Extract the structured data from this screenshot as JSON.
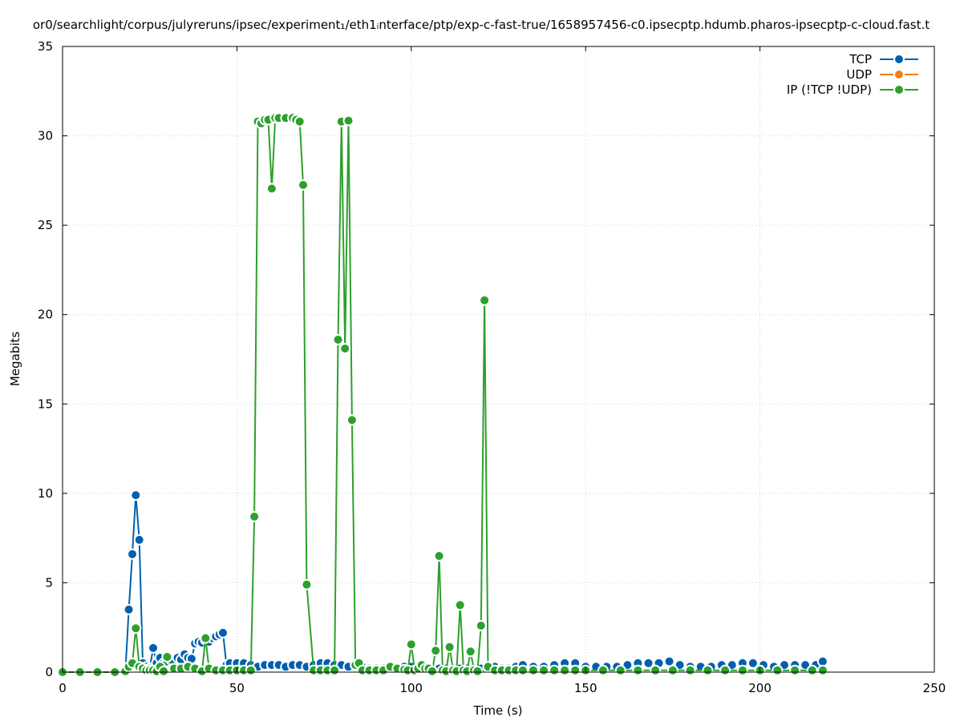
{
  "chart_data": {
    "type": "line",
    "title": "or0/searchlight/corpus/julyreruns/ipsec/experiment₁/eth1ᵢnterface/ptp/exp-c-fast-true/1658957456-c0.ipsecptp.hdumb.pharos-ipsecptp-c-cloud.fast.t",
    "xlabel": "Time (s)",
    "ylabel": "Megabits",
    "xlim": [
      0,
      250
    ],
    "ylim": [
      0,
      35
    ],
    "x_ticks": [
      0,
      50,
      100,
      150,
      200,
      250
    ],
    "y_ticks": [
      0,
      5,
      10,
      15,
      20,
      25,
      30,
      35
    ],
    "grid": true,
    "legend_position": "top-right",
    "series": [
      {
        "name": "TCP",
        "color": "#0060ad",
        "points": [
          [
            0,
            0
          ],
          [
            5,
            0
          ],
          [
            10,
            0
          ],
          [
            15,
            0
          ],
          [
            18,
            0
          ],
          [
            19,
            3.5
          ],
          [
            20,
            6.6
          ],
          [
            21,
            9.9
          ],
          [
            22,
            7.4
          ],
          [
            23,
            0.5
          ],
          [
            24,
            0.3
          ],
          [
            25,
            0.2
          ],
          [
            26,
            1.35
          ],
          [
            27,
            0.5
          ],
          [
            28,
            0.8
          ],
          [
            29,
            0.5
          ],
          [
            30,
            0.6
          ],
          [
            31,
            0.7
          ],
          [
            32,
            0.7
          ],
          [
            33,
            0.8
          ],
          [
            34,
            0.7
          ],
          [
            35,
            1.0
          ],
          [
            36,
            0.8
          ],
          [
            37,
            0.75
          ],
          [
            38,
            1.6
          ],
          [
            39,
            1.7
          ],
          [
            40,
            1.65
          ],
          [
            41,
            1.8
          ],
          [
            42,
            1.7
          ],
          [
            43,
            1.9
          ],
          [
            44,
            2.0
          ],
          [
            45,
            2.1
          ],
          [
            46,
            2.2
          ],
          [
            47,
            0.4
          ],
          [
            48,
            0.5
          ],
          [
            50,
            0.5
          ],
          [
            52,
            0.5
          ],
          [
            54,
            0.4
          ],
          [
            56,
            0.3
          ],
          [
            58,
            0.4
          ],
          [
            60,
            0.4
          ],
          [
            62,
            0.4
          ],
          [
            64,
            0.3
          ],
          [
            66,
            0.4
          ],
          [
            68,
            0.4
          ],
          [
            70,
            0.3
          ],
          [
            72,
            0.4
          ],
          [
            74,
            0.5
          ],
          [
            76,
            0.5
          ],
          [
            78,
            0.4
          ],
          [
            80,
            0.4
          ],
          [
            82,
            0.3
          ],
          [
            84,
            0.4
          ],
          [
            86,
            0.3
          ],
          [
            88,
            0.2
          ],
          [
            90,
            0.2
          ],
          [
            92,
            0.2
          ],
          [
            94,
            0.2
          ],
          [
            96,
            0.2
          ],
          [
            98,
            0.3
          ],
          [
            100,
            0.3
          ],
          [
            102,
            0.2
          ],
          [
            104,
            0.2
          ],
          [
            106,
            0.2
          ],
          [
            108,
            0.2
          ],
          [
            110,
            0.2
          ],
          [
            112,
            0.2
          ],
          [
            114,
            0.2
          ],
          [
            116,
            0.2
          ],
          [
            118,
            0.2
          ],
          [
            120,
            0.2
          ],
          [
            122,
            0.3
          ],
          [
            124,
            0.3
          ],
          [
            126,
            0.2
          ],
          [
            128,
            0.2
          ],
          [
            130,
            0.3
          ],
          [
            132,
            0.4
          ],
          [
            135,
            0.3
          ],
          [
            138,
            0.3
          ],
          [
            141,
            0.4
          ],
          [
            144,
            0.5
          ],
          [
            147,
            0.5
          ],
          [
            150,
            0.3
          ],
          [
            153,
            0.3
          ],
          [
            156,
            0.3
          ],
          [
            159,
            0.3
          ],
          [
            162,
            0.4
          ],
          [
            165,
            0.5
          ],
          [
            168,
            0.5
          ],
          [
            171,
            0.5
          ],
          [
            174,
            0.6
          ],
          [
            177,
            0.4
          ],
          [
            180,
            0.3
          ],
          [
            183,
            0.3
          ],
          [
            186,
            0.3
          ],
          [
            189,
            0.4
          ],
          [
            192,
            0.4
          ],
          [
            195,
            0.5
          ],
          [
            198,
            0.5
          ],
          [
            201,
            0.4
          ],
          [
            204,
            0.3
          ],
          [
            207,
            0.4
          ],
          [
            210,
            0.4
          ],
          [
            213,
            0.4
          ],
          [
            216,
            0.4
          ],
          [
            218,
            0.6
          ]
        ]
      },
      {
        "name": "UDP",
        "color": "#f07f16",
        "points": []
      },
      {
        "name": "IP (!TCP  !UDP)",
        "color": "#2ca02c",
        "points": [
          [
            0,
            0
          ],
          [
            5,
            0
          ],
          [
            10,
            0
          ],
          [
            15,
            0
          ],
          [
            18,
            0.05
          ],
          [
            19,
            0.3
          ],
          [
            20,
            0.5
          ],
          [
            21,
            2.45
          ],
          [
            22,
            0.3
          ],
          [
            23,
            0.2
          ],
          [
            24,
            0.1
          ],
          [
            25,
            0.1
          ],
          [
            26,
            0.1
          ],
          [
            27,
            0.05
          ],
          [
            28,
            0.3
          ],
          [
            29,
            0.05
          ],
          [
            30,
            0.85
          ],
          [
            32,
            0.2
          ],
          [
            34,
            0.2
          ],
          [
            36,
            0.3
          ],
          [
            38,
            0.2
          ],
          [
            40,
            0.05
          ],
          [
            41,
            1.9
          ],
          [
            42,
            0.2
          ],
          [
            44,
            0.1
          ],
          [
            46,
            0.1
          ],
          [
            48,
            0.1
          ],
          [
            50,
            0.1
          ],
          [
            52,
            0.1
          ],
          [
            54,
            0.1
          ],
          [
            55,
            8.7
          ],
          [
            56,
            30.8
          ],
          [
            57,
            30.7
          ],
          [
            58,
            30.9
          ],
          [
            59,
            30.9
          ],
          [
            60,
            27.05
          ],
          [
            61,
            31.0
          ],
          [
            62,
            31.0
          ],
          [
            64,
            31.0
          ],
          [
            66,
            31.0
          ],
          [
            67,
            30.9
          ],
          [
            68,
            30.8
          ],
          [
            69,
            27.25
          ],
          [
            70,
            4.9
          ],
          [
            72,
            0.1
          ],
          [
            74,
            0.1
          ],
          [
            76,
            0.1
          ],
          [
            78,
            0.1
          ],
          [
            79,
            18.6
          ],
          [
            80,
            30.8
          ],
          [
            81,
            18.1
          ],
          [
            82,
            30.85
          ],
          [
            83,
            14.1
          ],
          [
            84,
            0.4
          ],
          [
            85,
            0.5
          ],
          [
            86,
            0.1
          ],
          [
            88,
            0.1
          ],
          [
            90,
            0.1
          ],
          [
            92,
            0.1
          ],
          [
            94,
            0.3
          ],
          [
            96,
            0.2
          ],
          [
            98,
            0.15
          ],
          [
            99,
            0.1
          ],
          [
            100,
            1.55
          ],
          [
            101,
            0.1
          ],
          [
            102,
            0.2
          ],
          [
            103,
            0.4
          ],
          [
            104,
            0.2
          ],
          [
            105,
            0.2
          ],
          [
            106,
            0.05
          ],
          [
            107,
            1.2
          ],
          [
            108,
            6.5
          ],
          [
            109,
            0.1
          ],
          [
            110,
            0.05
          ],
          [
            111,
            1.4
          ],
          [
            112,
            0.1
          ],
          [
            113,
            0.05
          ],
          [
            114,
            3.75
          ],
          [
            115,
            0.1
          ],
          [
            116,
            0.05
          ],
          [
            117,
            1.15
          ],
          [
            118,
            0.1
          ],
          [
            119,
            0.05
          ],
          [
            120,
            2.6
          ],
          [
            121,
            20.8
          ],
          [
            122,
            0.3
          ],
          [
            124,
            0.1
          ],
          [
            126,
            0.1
          ],
          [
            128,
            0.1
          ],
          [
            130,
            0.1
          ],
          [
            132,
            0.1
          ],
          [
            135,
            0.1
          ],
          [
            138,
            0.1
          ],
          [
            141,
            0.1
          ],
          [
            144,
            0.1
          ],
          [
            147,
            0.1
          ],
          [
            150,
            0.1
          ],
          [
            155,
            0.1
          ],
          [
            160,
            0.1
          ],
          [
            165,
            0.1
          ],
          [
            170,
            0.1
          ],
          [
            175,
            0.1
          ],
          [
            180,
            0.1
          ],
          [
            185,
            0.1
          ],
          [
            190,
            0.1
          ],
          [
            195,
            0.1
          ],
          [
            200,
            0.1
          ],
          [
            205,
            0.1
          ],
          [
            210,
            0.1
          ],
          [
            215,
            0.1
          ],
          [
            218,
            0.1
          ]
        ]
      }
    ]
  }
}
